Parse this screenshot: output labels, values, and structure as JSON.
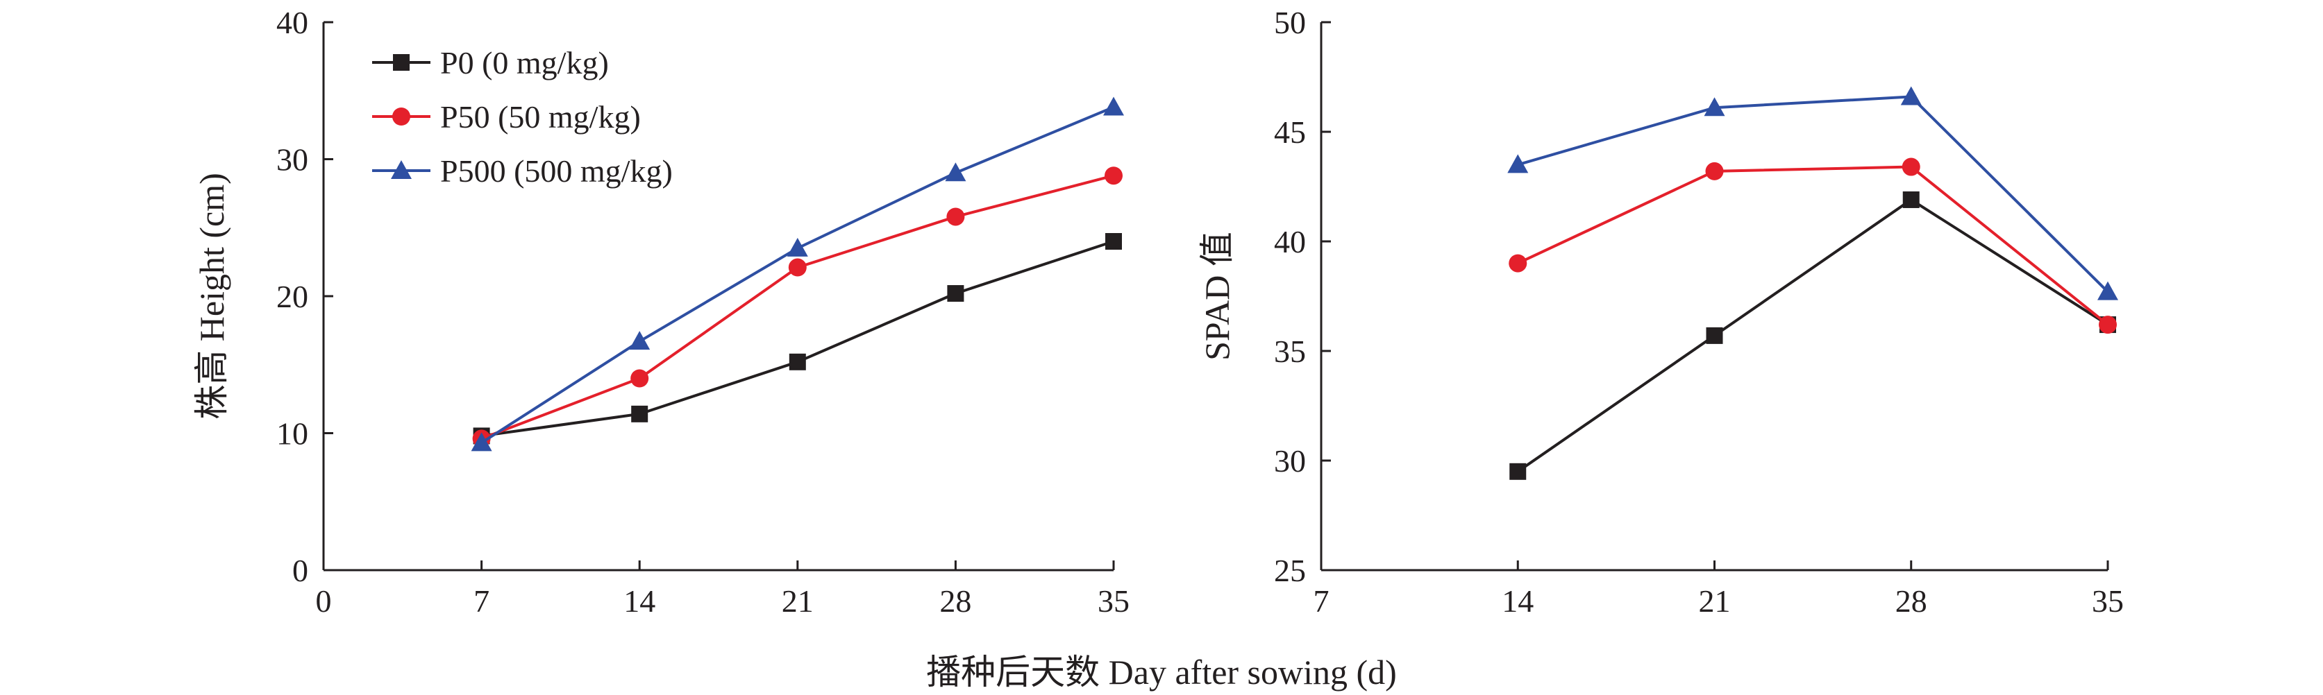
{
  "figure": {
    "shared_xlabel": "播种后天数 Day after sowing (d)"
  },
  "chart_data": [
    {
      "type": "line",
      "title": "",
      "xlabel": "",
      "ylabel": "株高 Height (cm)",
      "xlim": [
        0,
        35
      ],
      "ylim": [
        0,
        40
      ],
      "xticks": [
        0,
        7,
        14,
        21,
        28,
        35
      ],
      "yticks": [
        0,
        10,
        20,
        30,
        40
      ],
      "grid": false,
      "legend": "top-left",
      "x": [
        7,
        14,
        21,
        28,
        35
      ],
      "series": [
        {
          "name": "P0 (0 mg/kg)",
          "marker": "square",
          "color": "#231f20",
          "values": [
            9.8,
            11.4,
            15.2,
            20.2,
            24.0
          ]
        },
        {
          "name": "P50 (50 mg/kg)",
          "marker": "circle",
          "color": "#e4202b",
          "values": [
            9.6,
            14.0,
            22.1,
            25.8,
            28.8
          ]
        },
        {
          "name": "P500 (500 mg/kg)",
          "marker": "triangle",
          "color": "#2e4fa2",
          "values": [
            9.3,
            16.7,
            23.5,
            29.0,
            33.8
          ]
        }
      ]
    },
    {
      "type": "line",
      "title": "",
      "xlabel": "",
      "ylabel": "SPAD 值",
      "xlim": [
        7,
        35
      ],
      "ylim": [
        25,
        50
      ],
      "xticks": [
        7,
        14,
        21,
        28,
        35
      ],
      "yticks": [
        25,
        30,
        35,
        40,
        45,
        50
      ],
      "grid": false,
      "legend": "none",
      "x": [
        14,
        21,
        28,
        35
      ],
      "series": [
        {
          "name": "P0 (0 mg/kg)",
          "marker": "square",
          "color": "#231f20",
          "values": [
            29.5,
            35.7,
            41.9,
            36.2
          ]
        },
        {
          "name": "P50 (50 mg/kg)",
          "marker": "circle",
          "color": "#e4202b",
          "values": [
            39.0,
            43.2,
            43.4,
            36.2
          ]
        },
        {
          "name": "P500 (500 mg/kg)",
          "marker": "triangle",
          "color": "#2e4fa2",
          "values": [
            43.5,
            46.1,
            46.6,
            37.7
          ]
        }
      ]
    }
  ]
}
